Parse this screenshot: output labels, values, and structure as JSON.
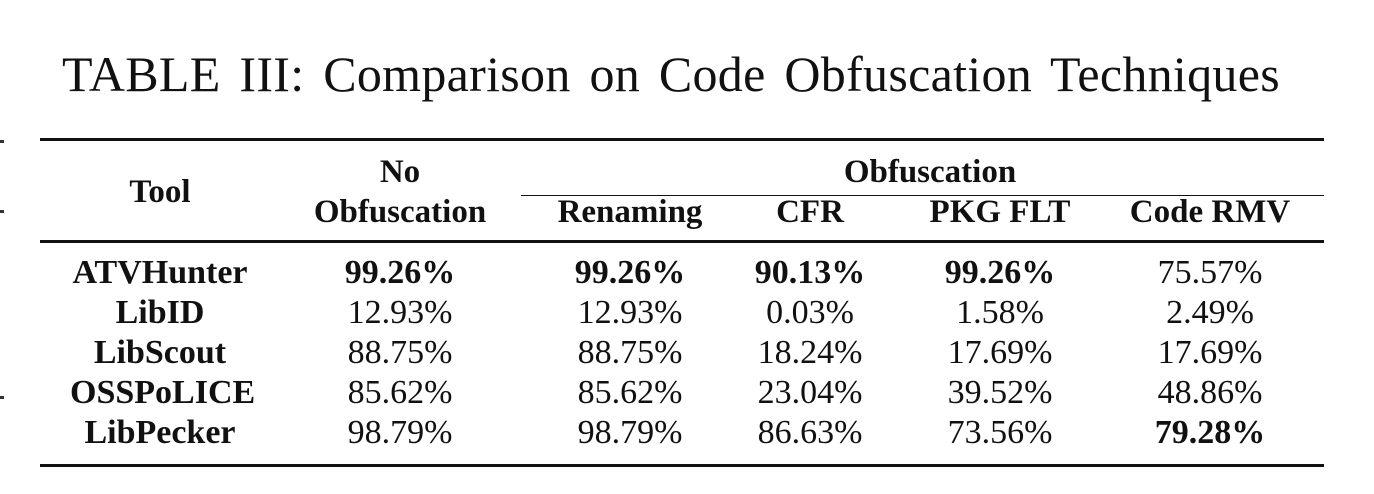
{
  "caption": "TABLE III: Comparison on Code Obfuscation Techniques",
  "header": {
    "tool": "Tool",
    "no_obf_line1": "No",
    "no_obf_line2": "Obfuscation",
    "obfuscation": "Obfuscation",
    "renaming": "Renaming",
    "cfr": "CFR",
    "pkg_flt": "PKG FLT",
    "code_rmv": "Code RMV"
  },
  "rows": [
    {
      "tool": "ATVHunter",
      "no_obf": "99.26%",
      "renaming": "99.26%",
      "cfr": "90.13%",
      "pkg_flt": "99.26%",
      "code_rmv": "75.57%"
    },
    {
      "tool": "LibID",
      "no_obf": "12.93%",
      "renaming": "12.93%",
      "cfr": "0.03%",
      "pkg_flt": "1.58%",
      "code_rmv": "2.49%"
    },
    {
      "tool": "LibScout",
      "no_obf": "88.75%",
      "renaming": "88.75%",
      "cfr": "18.24%",
      "pkg_flt": "17.69%",
      "code_rmv": "17.69%"
    },
    {
      "tool": "OSSPoLICE",
      "no_obf": "85.62%",
      "renaming": "85.62%",
      "cfr": "23.04%",
      "pkg_flt": "39.52%",
      "code_rmv": "48.86%"
    },
    {
      "tool": "LibPecker",
      "no_obf": "98.79%",
      "renaming": "98.79%",
      "cfr": "86.63%",
      "pkg_flt": "73.56%",
      "code_rmv": "79.28%"
    }
  ]
}
